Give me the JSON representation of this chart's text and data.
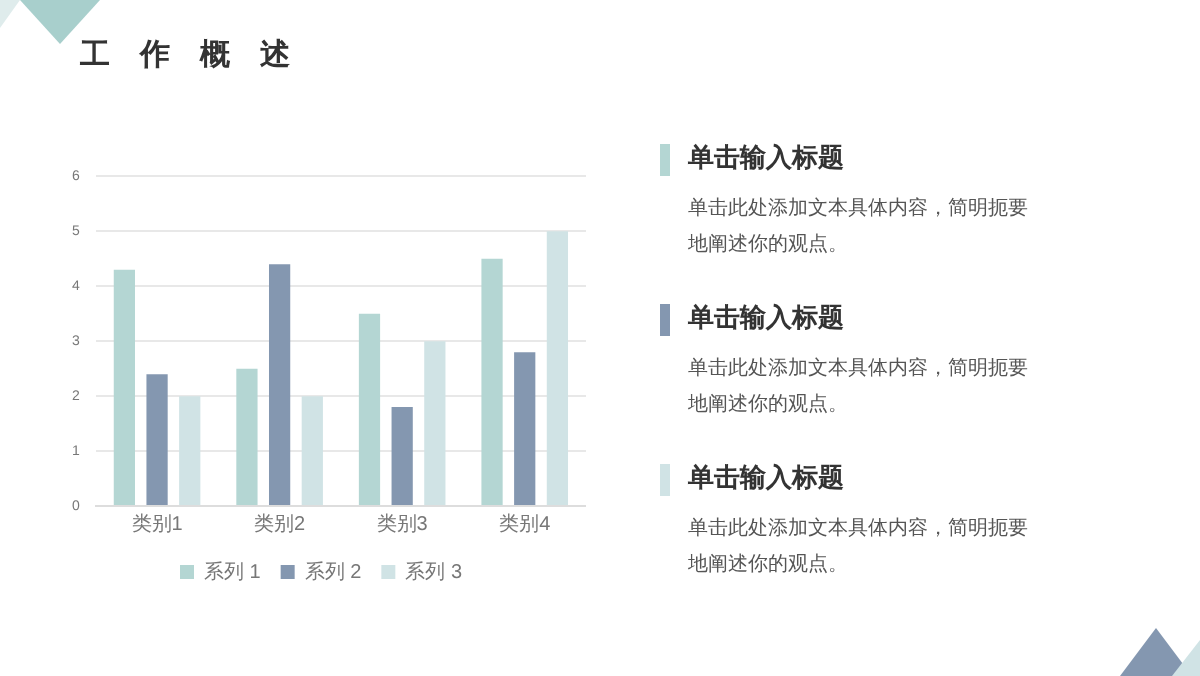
{
  "chart_data": {
    "type": "bar",
    "title": "工　作　概　述",
    "categories": [
      "类别1",
      "类别2",
      "类别3",
      "类别4"
    ],
    "series": [
      {
        "name": "系列 1",
        "color": "#b4d6d3",
        "values": [
          4.3,
          2.5,
          3.5,
          4.5
        ]
      },
      {
        "name": "系列 2",
        "color": "#8497b0",
        "values": [
          2.4,
          4.4,
          1.8,
          2.8
        ]
      },
      {
        "name": "系列 3",
        "color": "#d0e3e5",
        "values": [
          2,
          2,
          3,
          5
        ]
      }
    ],
    "ylim": [
      0,
      6
    ],
    "yticks": [
      0,
      1,
      2,
      3,
      4,
      5,
      6
    ],
    "grid": "y",
    "legend": "bottom",
    "annotations": [
      "单击输入标题",
      "单击此处添加文本具体内容，简明扼要地阐述你的观点。",
      "单击输入标题",
      "单击此处添加文本具体内容，简明扼要地阐述你的观点。",
      "单击输入标题",
      "单击此处添加文本具体内容，简明扼要地阐述你的观点。"
    ]
  }
}
